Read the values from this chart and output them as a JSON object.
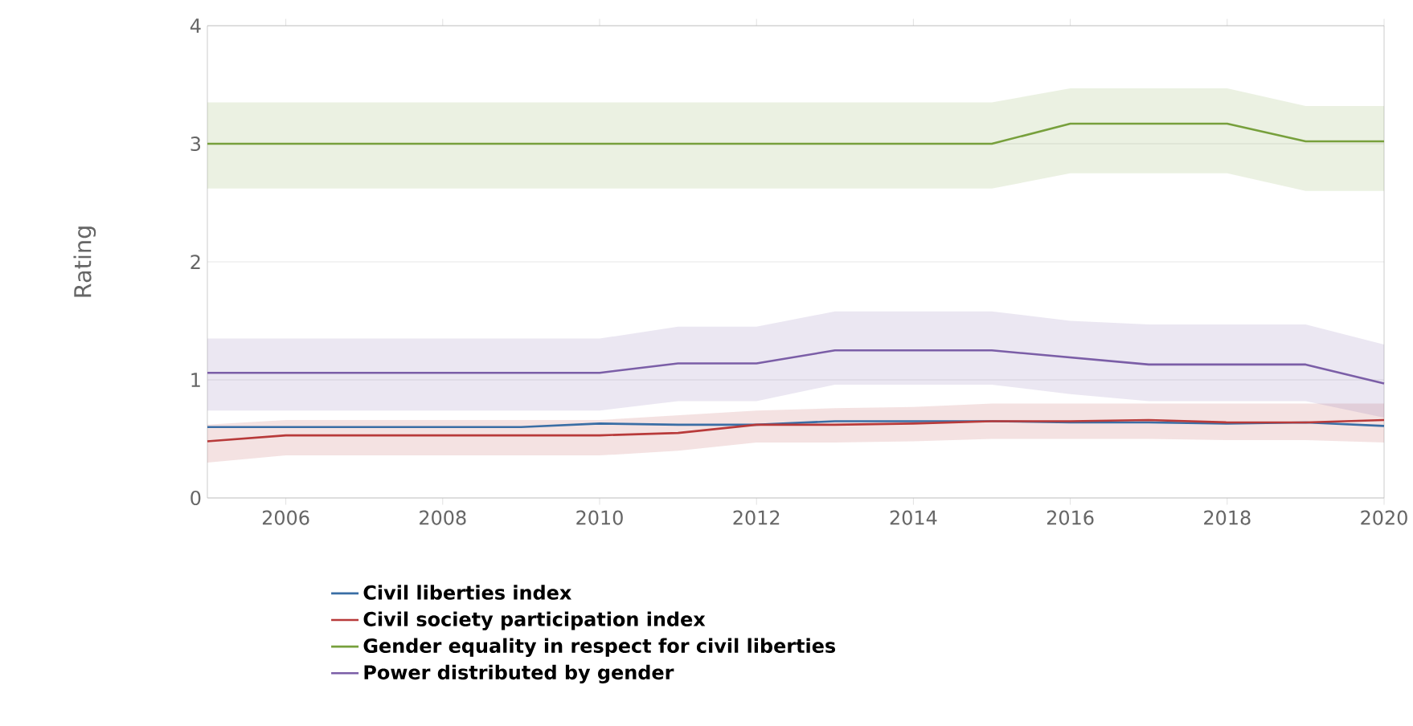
{
  "chart_data": {
    "type": "line",
    "ylabel": "Rating",
    "x": [
      2005,
      2006,
      2007,
      2008,
      2009,
      2010,
      2011,
      2012,
      2013,
      2014,
      2015,
      2016,
      2017,
      2018,
      2019,
      2020
    ],
    "xlim": [
      2005,
      2020
    ],
    "xticks": [
      2006,
      2008,
      2010,
      2012,
      2014,
      2016,
      2018,
      2020
    ],
    "ylim": [
      0,
      4
    ],
    "yticks": [
      0,
      1,
      2,
      3,
      4
    ],
    "grid": "y",
    "legend": "bottom",
    "line_style": "solid",
    "marker": "none",
    "series": [
      {
        "name": "Civil liberties index",
        "color": "#3a6ea5",
        "values": [
          0.6,
          0.6,
          0.6,
          0.6,
          0.6,
          0.63,
          0.62,
          0.62,
          0.65,
          0.65,
          0.65,
          0.64,
          0.64,
          0.63,
          0.64,
          0.61
        ]
      },
      {
        "name": "Civil society participation index",
        "color": "#b83a3a",
        "values": [
          0.48,
          0.53,
          0.53,
          0.53,
          0.53,
          0.53,
          0.55,
          0.62,
          0.62,
          0.63,
          0.65,
          0.65,
          0.66,
          0.64,
          0.64,
          0.66
        ],
        "lower": [
          0.3,
          0.36,
          0.36,
          0.36,
          0.36,
          0.36,
          0.4,
          0.47,
          0.47,
          0.48,
          0.5,
          0.5,
          0.5,
          0.49,
          0.49,
          0.47
        ],
        "upper": [
          0.62,
          0.66,
          0.66,
          0.66,
          0.66,
          0.66,
          0.7,
          0.74,
          0.76,
          0.77,
          0.8,
          0.8,
          0.8,
          0.8,
          0.8,
          0.8
        ]
      },
      {
        "name": "Gender equality in respect for civil liberties",
        "color": "#77a03c",
        "values": [
          3.0,
          3.0,
          3.0,
          3.0,
          3.0,
          3.0,
          3.0,
          3.0,
          3.0,
          3.0,
          3.0,
          3.17,
          3.17,
          3.17,
          3.02,
          3.02
        ],
        "lower": [
          2.62,
          2.62,
          2.62,
          2.62,
          2.62,
          2.62,
          2.62,
          2.62,
          2.62,
          2.62,
          2.62,
          2.75,
          2.75,
          2.75,
          2.6,
          2.6
        ],
        "upper": [
          3.35,
          3.35,
          3.35,
          3.35,
          3.35,
          3.35,
          3.35,
          3.35,
          3.35,
          3.35,
          3.35,
          3.47,
          3.47,
          3.47,
          3.32,
          3.32
        ]
      },
      {
        "name": "Power distributed by gender",
        "color": "#7b5ea7",
        "values": [
          1.06,
          1.06,
          1.06,
          1.06,
          1.06,
          1.06,
          1.14,
          1.14,
          1.25,
          1.25,
          1.25,
          1.19,
          1.13,
          1.13,
          1.13,
          0.97
        ],
        "lower": [
          0.74,
          0.74,
          0.74,
          0.74,
          0.74,
          0.74,
          0.82,
          0.82,
          0.96,
          0.96,
          0.96,
          0.88,
          0.82,
          0.82,
          0.82,
          0.68
        ],
        "upper": [
          1.35,
          1.35,
          1.35,
          1.35,
          1.35,
          1.35,
          1.45,
          1.45,
          1.58,
          1.58,
          1.58,
          1.5,
          1.47,
          1.47,
          1.47,
          1.3
        ]
      }
    ]
  }
}
